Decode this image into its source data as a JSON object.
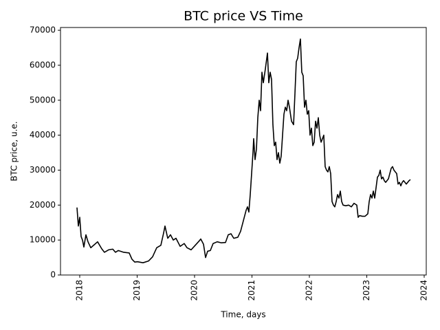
{
  "chart_data": {
    "type": "line",
    "title": "BTC price VS Time",
    "xlabel": "Time, days",
    "ylabel": "BTC price, u.e.",
    "x": [
      2017.952,
      2017.976,
      2018.0,
      2018.024,
      2018.048,
      2018.072,
      2018.108,
      2018.144,
      2018.192,
      2018.263,
      2018.311,
      2018.383,
      2018.431,
      2018.503,
      2018.575,
      2018.623,
      2018.671,
      2018.766,
      2018.862,
      2018.91,
      2018.958,
      2019.006,
      2019.102,
      2019.198,
      2019.269,
      2019.341,
      2019.413,
      2019.461,
      2019.485,
      2019.533,
      2019.581,
      2019.629,
      2019.677,
      2019.749,
      2019.82,
      2019.868,
      2019.94,
      2020.012,
      2020.084,
      2020.108,
      2020.156,
      2020.192,
      2020.228,
      2020.275,
      2020.323,
      2020.395,
      2020.467,
      2020.539,
      2020.587,
      2020.635,
      2020.683,
      2020.754,
      2020.802,
      2020.85,
      2020.898,
      2020.922,
      2020.946,
      2020.97,
      2020.994,
      2021.018,
      2021.03,
      2021.054,
      2021.078,
      2021.102,
      2021.126,
      2021.15,
      2021.174,
      2021.198,
      2021.234,
      2021.27,
      2021.293,
      2021.317,
      2021.341,
      2021.365,
      2021.389,
      2021.413,
      2021.437,
      2021.461,
      2021.485,
      2021.509,
      2021.533,
      2021.557,
      2021.581,
      2021.605,
      2021.629,
      2021.653,
      2021.689,
      2021.725,
      2021.749,
      2021.772,
      2021.796,
      2021.82,
      2021.844,
      2021.868,
      2021.892,
      2021.916,
      2021.94,
      2021.964,
      2021.988,
      2022.012,
      2022.036,
      2022.06,
      2022.084,
      2022.108,
      2022.132,
      2022.156,
      2022.18,
      2022.204,
      2022.228,
      2022.251,
      2022.275,
      2022.299,
      2022.323,
      2022.347,
      2022.371,
      2022.395,
      2022.419,
      2022.443,
      2022.467,
      2022.491,
      2022.515,
      2022.539,
      2022.563,
      2022.587,
      2022.635,
      2022.683,
      2022.731,
      2022.778,
      2022.826,
      2022.85,
      2022.874,
      2022.922,
      2022.97,
      2023.018,
      2023.042,
      2023.066,
      2023.09,
      2023.114,
      2023.138,
      2023.162,
      2023.186,
      2023.21,
      2023.234,
      2023.257,
      2023.281,
      2023.305,
      2023.329,
      2023.377,
      2023.425,
      2023.449,
      2023.473,
      2023.497,
      2023.521,
      2023.545,
      2023.569,
      2023.593,
      2023.617,
      2023.641,
      2023.689,
      2023.737,
      2023.76
    ],
    "series": [
      {
        "name": "BTC price",
        "color": "#000000",
        "values": [
          19300,
          14000,
          16500,
          11000,
          10000,
          8000,
          11500,
          9500,
          7800,
          8800,
          9500,
          7500,
          6500,
          7200,
          7400,
          6500,
          7000,
          6500,
          6300,
          4500,
          3700,
          3800,
          3500,
          4000,
          5200,
          7800,
          8500,
          12000,
          14000,
          10500,
          11500,
          10000,
          10500,
          8200,
          9000,
          7800,
          7200,
          8500,
          9800,
          10300,
          8800,
          5000,
          6800,
          7000,
          9000,
          9500,
          9200,
          9300,
          11500,
          11800,
          10500,
          10800,
          12500,
          15500,
          18500,
          19500,
          18000,
          23000,
          29000,
          35000,
          39000,
          33000,
          36000,
          45000,
          50000,
          47000,
          58000,
          55000,
          59000,
          63500,
          55000,
          58000,
          56000,
          43000,
          37000,
          38000,
          33000,
          35000,
          32000,
          34000,
          40000,
          46000,
          48000,
          47000,
          50000,
          48000,
          44000,
          43000,
          52000,
          61000,
          62000,
          65000,
          67500,
          58000,
          57000,
          48000,
          50000,
          46000,
          47000,
          40000,
          42000,
          37000,
          38000,
          44000,
          42000,
          45000,
          40000,
          38000,
          39000,
          40000,
          31000,
          30000,
          29500,
          31000,
          29000,
          21000,
          20000,
          19500,
          21000,
          23000,
          22000,
          24000,
          21000,
          20000,
          19800,
          20000,
          19500,
          20500,
          20000,
          16500,
          17000,
          16800,
          16800,
          17500,
          21000,
          23000,
          22000,
          24000,
          22000,
          25000,
          28000,
          28500,
          30000,
          27500,
          28000,
          27000,
          26500,
          27500,
          30500,
          31000,
          30000,
          29500,
          29000,
          26000,
          26500,
          25500,
          26500,
          27000,
          26000,
          27000,
          27300
        ]
      }
    ],
    "xlim": [
      2017.665,
      2024.036
    ],
    "xticks": [
      2018,
      2019,
      2020,
      2021,
      2022,
      2023,
      2024
    ],
    "ylim": [
      0,
      70800
    ],
    "yticks": [
      0,
      10000,
      20000,
      30000,
      40000,
      50000,
      60000,
      70000
    ],
    "grid": false
  }
}
